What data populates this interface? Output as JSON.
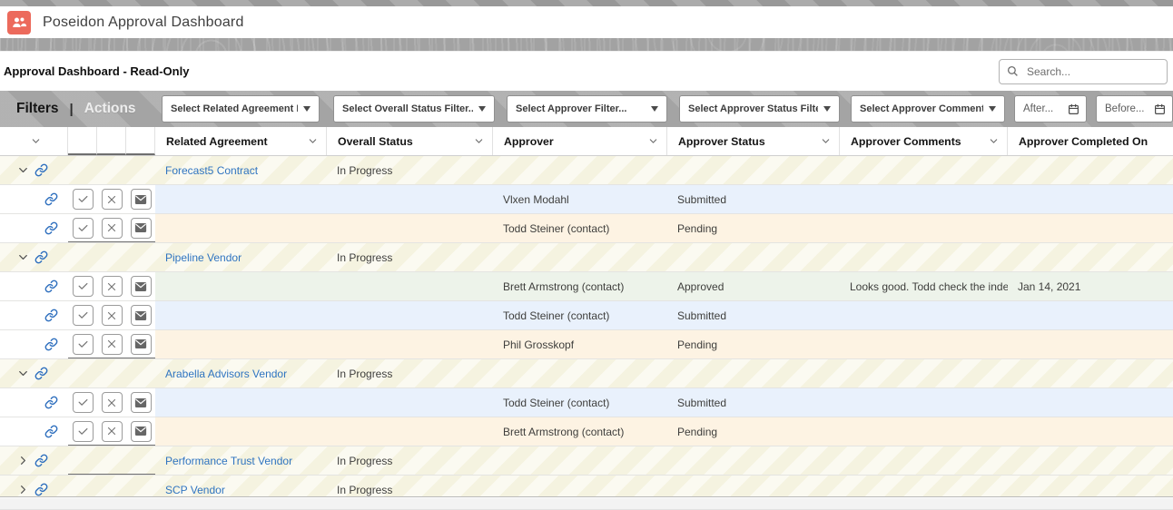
{
  "app": {
    "title": "Poseidon Approval Dashboard",
    "accent_color": "#ec6a5c"
  },
  "page": {
    "title": "Approval Dashboard - Read-Only",
    "search_placeholder": "Search..."
  },
  "filters_bar": {
    "filters_label": "Filters",
    "separator": "|",
    "actions_label": "Actions",
    "dropdowns": [
      "Select Related Agreement Filter...",
      "Select Overall Status Filter...",
      "Select Approver Filter...",
      "Select Approver Status Filter...",
      "Select Approver Comments Filter..."
    ],
    "date_filters": [
      {
        "placeholder": "After..."
      },
      {
        "placeholder": "Before..."
      }
    ]
  },
  "icons": {
    "logo": "users-icon",
    "search": "search-icon",
    "dropdown_caret": "caret-down-icon",
    "calendar": "calendar-icon",
    "record_link": "link-icon",
    "expanded": "chevron-down-icon",
    "collapsed": "chevron-right-icon",
    "approve": "check-icon",
    "reject": "x-icon",
    "email": "envelope-icon"
  },
  "table": {
    "columns": [
      "Related Agreement",
      "Overall Status",
      "Approver",
      "Approver Status",
      "Approver Comments",
      "Approver Completed On"
    ],
    "status_colors": {
      "submitted": "#e9f1fc",
      "pending": "#fdf3e3",
      "approved": "#edf3ea"
    },
    "rows": [
      {
        "type": "parent",
        "expanded": true,
        "related_agreement": "Forecast5 Contract",
        "overall_status": "In Progress"
      },
      {
        "type": "child",
        "tint": "submitted",
        "approver": "Vlxen Modahl",
        "approver_status": "Submitted",
        "approver_comments": "",
        "approver_completed_on": ""
      },
      {
        "type": "child",
        "tint": "pending",
        "group_end": true,
        "approver": "Todd Steiner (contact)",
        "approver_status": "Pending",
        "approver_comments": "",
        "approver_completed_on": ""
      },
      {
        "type": "parent",
        "expanded": true,
        "related_agreement": "Pipeline Vendor",
        "overall_status": "In Progress"
      },
      {
        "type": "child",
        "tint": "approved",
        "approver": "Brett Armstrong (contact)",
        "approver_status": "Approved",
        "approver_comments": "Looks good. Todd check the indemnity ...",
        "approver_completed_on": "Jan 14, 2021"
      },
      {
        "type": "child",
        "tint": "submitted",
        "approver": "Todd Steiner (contact)",
        "approver_status": "Submitted",
        "approver_comments": "",
        "approver_completed_on": ""
      },
      {
        "type": "child",
        "tint": "pending",
        "group_end": true,
        "approver": "Phil Grosskopf",
        "approver_status": "Pending",
        "approver_comments": "",
        "approver_completed_on": ""
      },
      {
        "type": "parent",
        "expanded": true,
        "related_agreement": "Arabella Advisors Vendor",
        "overall_status": "In Progress"
      },
      {
        "type": "child",
        "tint": "submitted",
        "approver": "Todd Steiner (contact)",
        "approver_status": "Submitted",
        "approver_comments": "",
        "approver_completed_on": ""
      },
      {
        "type": "child",
        "tint": "pending",
        "group_end": true,
        "approver": "Brett Armstrong (contact)",
        "approver_status": "Pending",
        "approver_comments": "",
        "approver_completed_on": ""
      },
      {
        "type": "parent",
        "expanded": false,
        "group_end": true,
        "related_agreement": "Performance Trust Vendor",
        "overall_status": "In Progress"
      },
      {
        "type": "parent",
        "expanded": false,
        "related_agreement": "SCP Vendor",
        "overall_status": "In Progress"
      }
    ]
  }
}
